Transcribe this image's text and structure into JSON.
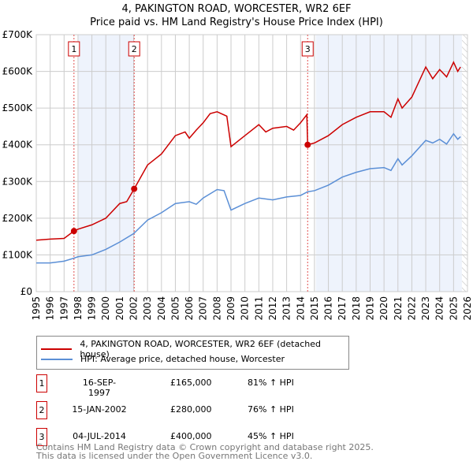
{
  "chart_data": {
    "type": "line",
    "title": "4, PAKINGTON ROAD, WORCESTER, WR2 6EF",
    "subtitle": "Price paid vs. HM Land Registry's House Price Index (HPI)",
    "xlim": [
      1995,
      2026
    ],
    "ylim": [
      0,
      700000
    ],
    "x_ticks": [
      "1995",
      "1996",
      "1997",
      "1998",
      "1999",
      "2000",
      "2001",
      "2002",
      "2003",
      "2004",
      "2005",
      "2006",
      "2007",
      "2008",
      "2009",
      "2010",
      "2011",
      "2012",
      "2013",
      "2014",
      "2015",
      "2016",
      "2017",
      "2018",
      "2019",
      "2020",
      "2021",
      "2022",
      "2023",
      "2024",
      "2025",
      "2026"
    ],
    "y_ticks": [
      {
        "v": 0,
        "l": "£0"
      },
      {
        "v": 100000,
        "l": "£100K"
      },
      {
        "v": 200000,
        "l": "£200K"
      },
      {
        "v": 300000,
        "l": "£300K"
      },
      {
        "v": 400000,
        "l": "£400K"
      },
      {
        "v": 500000,
        "l": "£500K"
      },
      {
        "v": 600000,
        "l": "£600K"
      },
      {
        "v": 700000,
        "l": "£700K"
      }
    ],
    "series": [
      {
        "name": "4, PAKINGTON ROAD, WORCESTER, WR2 6EF (detached house)",
        "color": "#cc0000",
        "points": [
          [
            1995,
            140
          ],
          [
            1996,
            143
          ],
          [
            1997,
            145
          ],
          [
            1997.71,
            165
          ],
          [
            1998,
            170
          ],
          [
            1999,
            182
          ],
          [
            2000,
            200
          ],
          [
            2001,
            240
          ],
          [
            2001.5,
            245
          ],
          [
            2002.04,
            280
          ],
          [
            2003,
            345
          ],
          [
            2004,
            375
          ],
          [
            2005,
            425
          ],
          [
            2005.7,
            435
          ],
          [
            2006,
            418
          ],
          [
            2006.5,
            440
          ],
          [
            2007,
            460
          ],
          [
            2007.5,
            485
          ],
          [
            2008,
            490
          ],
          [
            2008.7,
            478
          ],
          [
            2009,
            395
          ],
          [
            2010,
            425
          ],
          [
            2011,
            455
          ],
          [
            2011.5,
            435
          ],
          [
            2012,
            445
          ],
          [
            2013,
            450
          ],
          [
            2013.5,
            440
          ],
          [
            2014,
            460
          ],
          [
            2014.45,
            482
          ],
          [
            2014.51,
            400
          ],
          [
            2015,
            405
          ],
          [
            2016,
            425
          ],
          [
            2017,
            455
          ],
          [
            2018,
            475
          ],
          [
            2019,
            490
          ],
          [
            2020,
            490
          ],
          [
            2020.5,
            475
          ],
          [
            2021,
            525
          ],
          [
            2021.3,
            500
          ],
          [
            2022,
            530
          ],
          [
            2023,
            612
          ],
          [
            2023.5,
            580
          ],
          [
            2024,
            605
          ],
          [
            2024.5,
            585
          ],
          [
            2025,
            625
          ],
          [
            2025.3,
            600
          ],
          [
            2025.5,
            612
          ]
        ]
      },
      {
        "name": "HPI: Average price, detached house, Worcester",
        "color": "#5b8fd6",
        "points": [
          [
            1995,
            78
          ],
          [
            1996,
            78
          ],
          [
            1997,
            83
          ],
          [
            1997.7,
            91
          ],
          [
            1998,
            95
          ],
          [
            1999,
            100
          ],
          [
            2000,
            115
          ],
          [
            2001,
            135
          ],
          [
            2002,
            158
          ],
          [
            2003,
            195
          ],
          [
            2004,
            215
          ],
          [
            2005,
            240
          ],
          [
            2006,
            245
          ],
          [
            2006.5,
            238
          ],
          [
            2007,
            255
          ],
          [
            2008,
            278
          ],
          [
            2008.5,
            275
          ],
          [
            2009,
            222
          ],
          [
            2010,
            240
          ],
          [
            2011,
            255
          ],
          [
            2012,
            250
          ],
          [
            2013,
            258
          ],
          [
            2014,
            262
          ],
          [
            2014.5,
            272
          ],
          [
            2015,
            275
          ],
          [
            2016,
            290
          ],
          [
            2017,
            312
          ],
          [
            2018,
            325
          ],
          [
            2019,
            335
          ],
          [
            2020,
            338
          ],
          [
            2020.5,
            330
          ],
          [
            2021,
            362
          ],
          [
            2021.3,
            345
          ],
          [
            2022,
            370
          ],
          [
            2023,
            412
          ],
          [
            2023.5,
            405
          ],
          [
            2024,
            415
          ],
          [
            2024.5,
            402
          ],
          [
            2025,
            430
          ],
          [
            2025.3,
            415
          ],
          [
            2025.5,
            422
          ]
        ]
      }
    ],
    "sales": [
      {
        "n": "1",
        "x": 1997.71,
        "y": 165,
        "date": "16-SEP-1997",
        "price": "£165,000",
        "hpi": "81% ↑ HPI"
      },
      {
        "n": "2",
        "x": 2002.04,
        "y": 280,
        "date": "15-JAN-2002",
        "price": "£280,000",
        "hpi": "76% ↑ HPI"
      },
      {
        "n": "3",
        "x": 2014.51,
        "y": 400,
        "date": "04-JUL-2014",
        "price": "£400,000",
        "hpi": "45% ↑ HPI"
      }
    ],
    "shaded": [
      [
        1998,
        2002.04
      ],
      [
        2015.1,
        2025.6
      ]
    ],
    "hatched_from": 2025.6
  },
  "footer": {
    "line1": "Contains HM Land Registry data © Crown copyright and database right 2025.",
    "line2": "This data is licensed under the Open Government Licence v3.0."
  }
}
